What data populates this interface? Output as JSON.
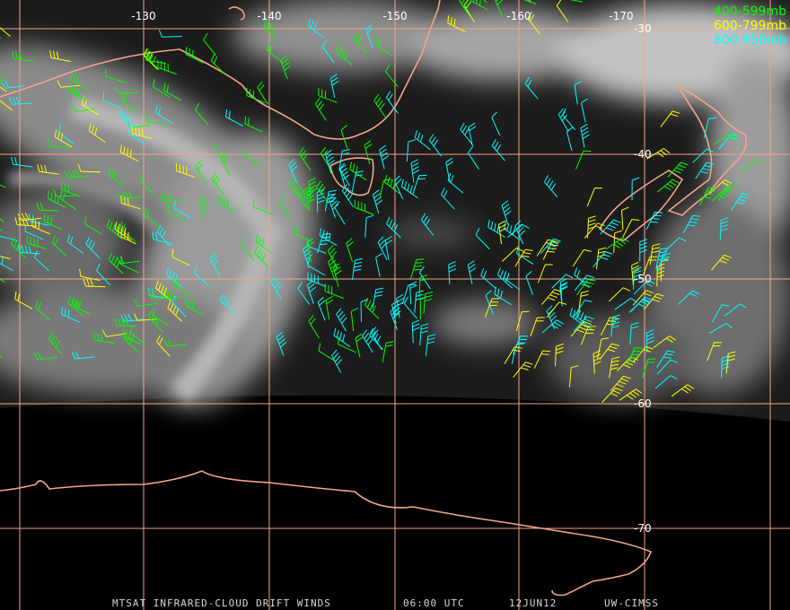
{
  "map": {
    "longitude_labels": [
      "-130",
      "-140",
      "-150",
      "-160",
      "-170"
    ],
    "latitude_labels": [
      "-30",
      "-40",
      "-50",
      "-60",
      "-70"
    ],
    "legend": [
      {
        "name": "400-599mb",
        "color": "#00ff00"
      },
      {
        "name": "600-799mb",
        "color": "#ffff00"
      },
      {
        "name": "800-950mb",
        "color": "#00ffff"
      }
    ],
    "footer": {
      "product": "MTSAT INFRARED-CLOUD DRIFT WINDS",
      "time": "06:00 UTC",
      "date": "12JUN12",
      "source": "UW-CIMSS"
    }
  }
}
